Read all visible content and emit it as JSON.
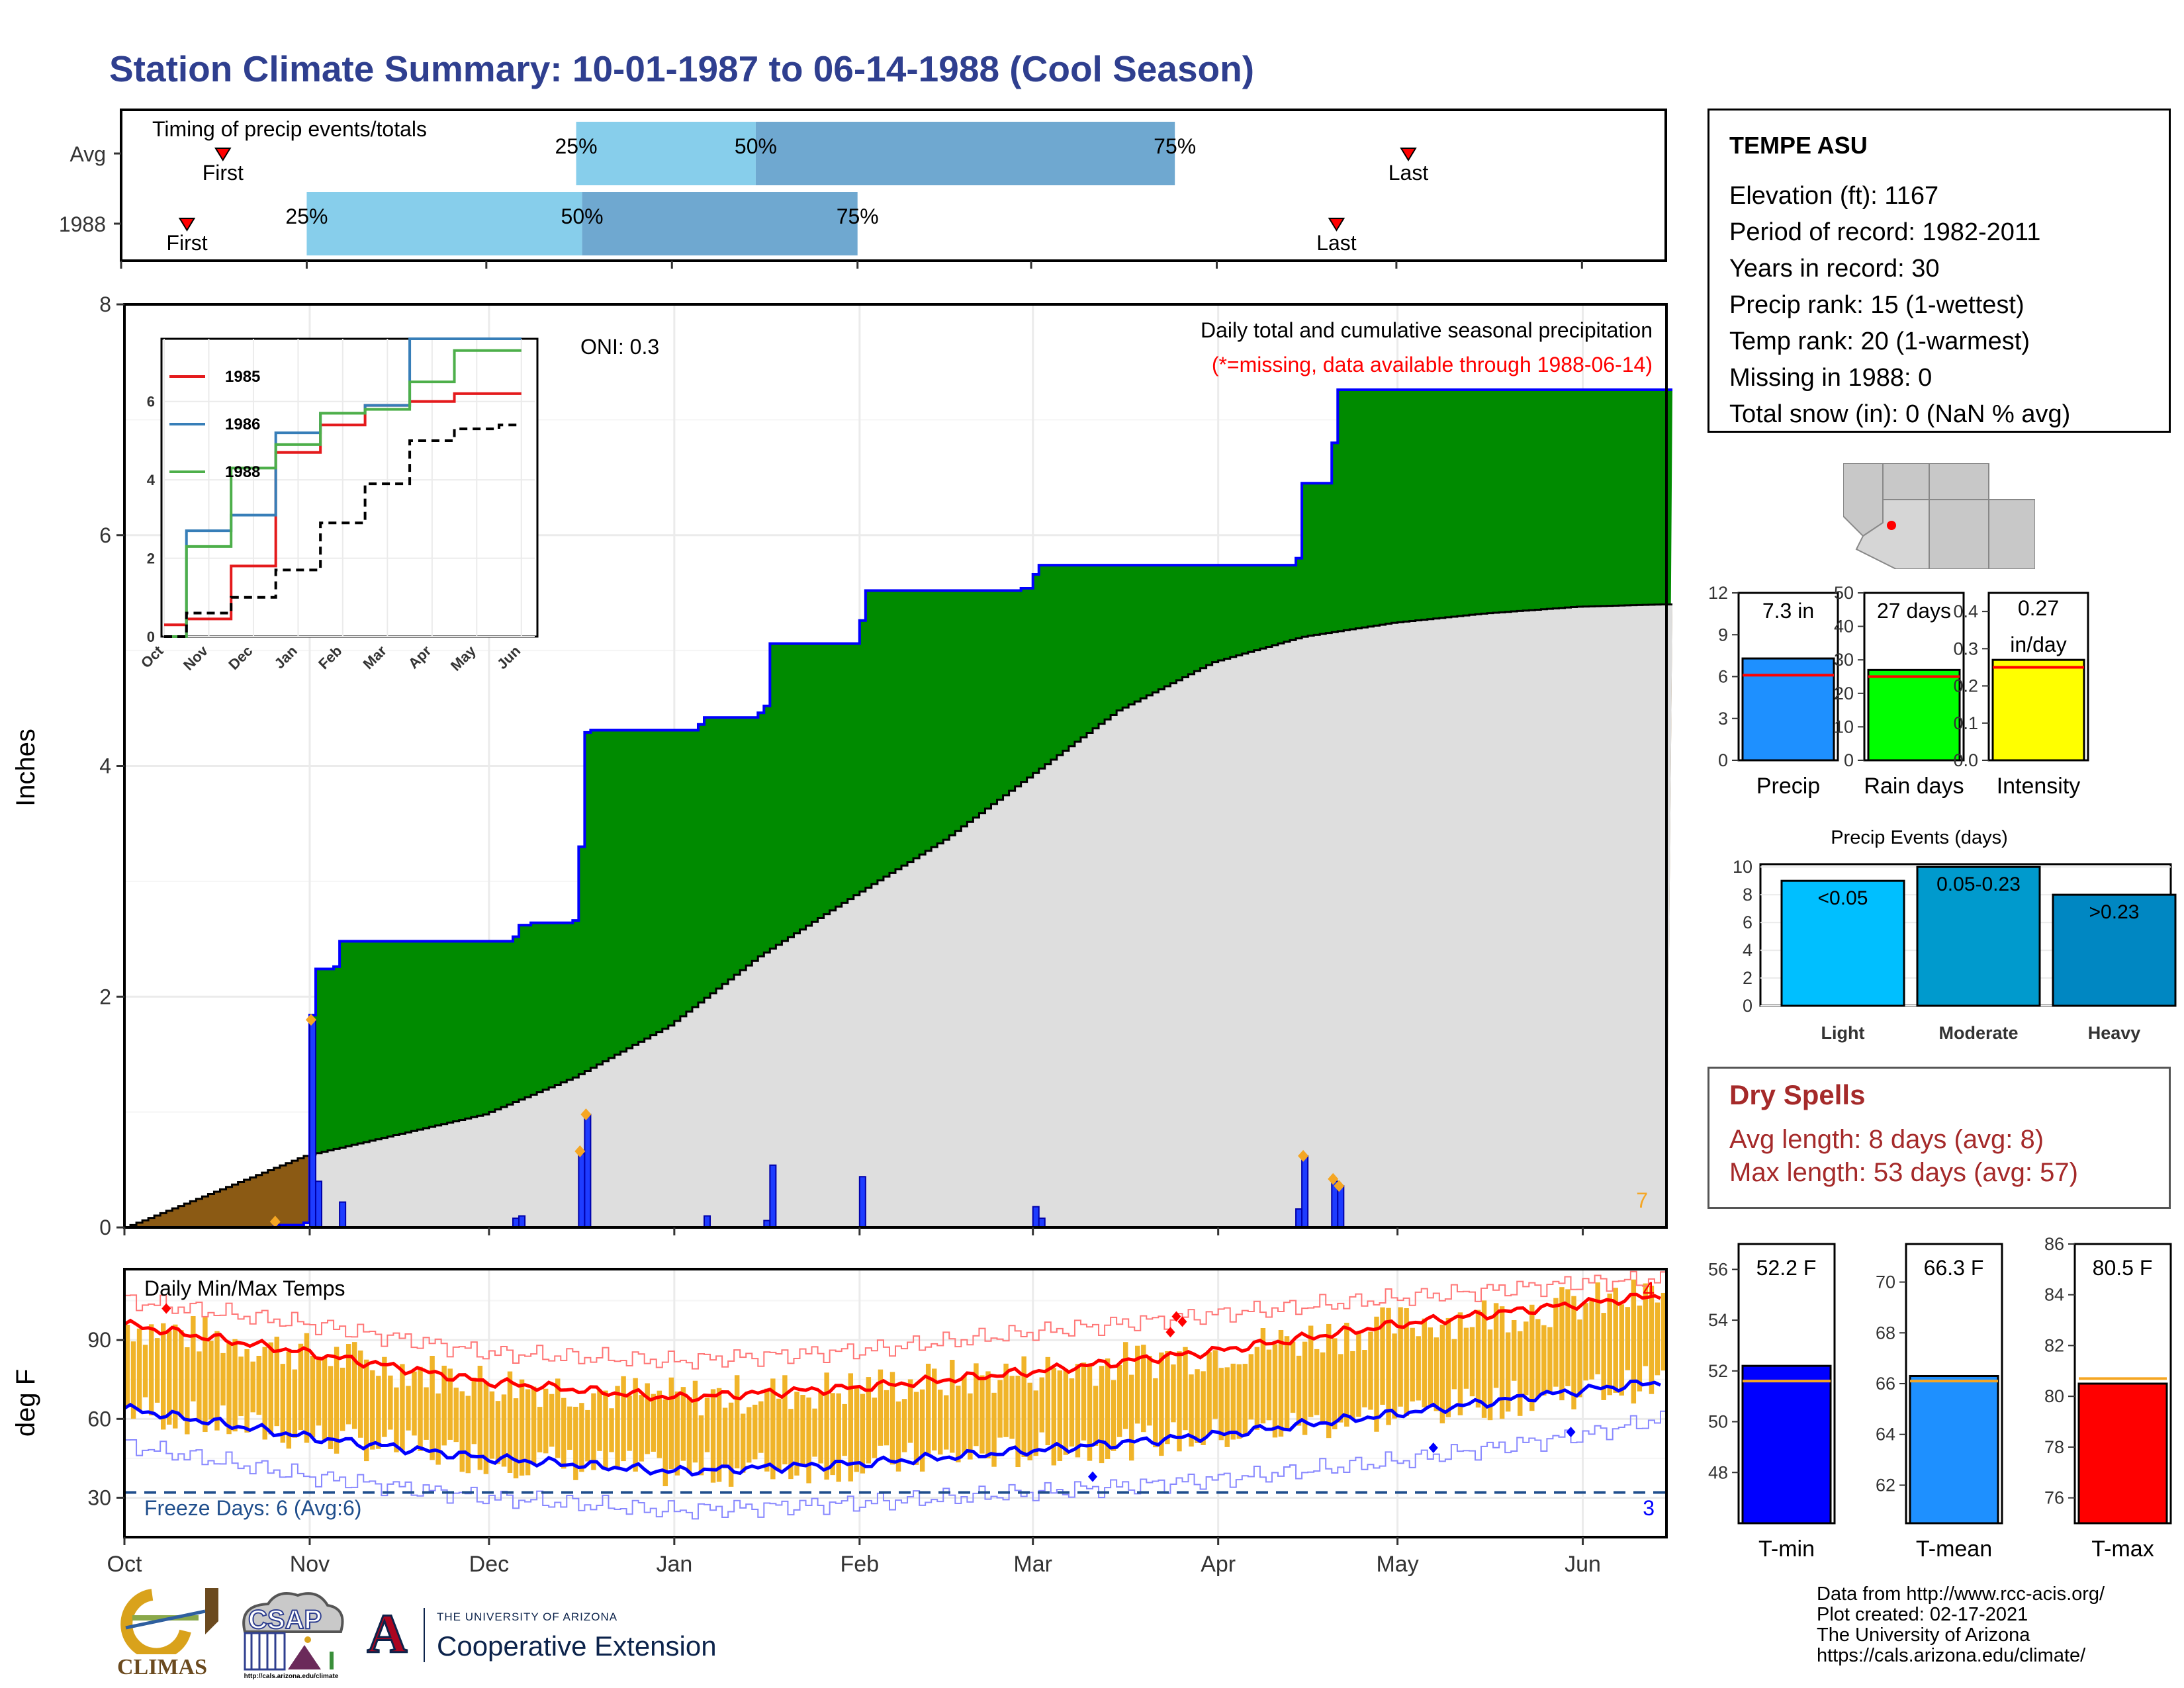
{
  "title": "Station Climate Summary: 10-01-1987 to 06-14-1988 (Cool Season)",
  "timing": {
    "label": "Timing of precip events/totals",
    "rows": [
      {
        "name": "Avg",
        "first": "1987-10-18",
        "q25": "1987-12-16",
        "q50": "1988-01-15",
        "q75": "1988-03-25",
        "last": "1988-05-03"
      },
      {
        "name": "1988",
        "first": "1987-10-12",
        "q25": "1987-11-01",
        "q50": "1987-12-17",
        "q75": "1988-02-01",
        "last": "1988-04-21"
      }
    ],
    "first_label": "First",
    "last_label": "Last",
    "pct_labels": [
      "25%",
      "50%",
      "75%"
    ]
  },
  "station": {
    "name": "TEMPE ASU",
    "lines": [
      "Elevation (ft): 1167",
      "Period of record: 1982-2011",
      "Years in record: 30",
      "Precip rank: 15 (1-wettest)",
      "Temp rank: 20 (1-warmest)",
      "Missing in 1988: 0",
      "Total snow (in): 0 (NaN % avg)"
    ]
  },
  "main_panel": {
    "ylabel": "Inches",
    "caption": "Daily total and cumulative seasonal precipitation",
    "missing_note": "(*=missing, data available through 1988-06-14)",
    "oni": "ONI: 0.3",
    "corner_value": "7",
    "yticks": [
      "0",
      "2",
      "4",
      "6",
      "8"
    ]
  },
  "inset": {
    "xticks": [
      "Oct",
      "Nov",
      "Dec",
      "Jan",
      "Feb",
      "Mar",
      "Apr",
      "May",
      "Jun"
    ],
    "yticks": [
      "0",
      "2",
      "4",
      "6"
    ],
    "legend": [
      {
        "name": "1985",
        "color": "#e41a1c"
      },
      {
        "name": "1986",
        "color": "#377eb8"
      },
      {
        "name": "1988",
        "color": "#4daf4a"
      }
    ]
  },
  "temp_panel": {
    "ylabel": "deg F",
    "title": "Daily Min/Max Temps",
    "freeze_text": "Freeze Days: 6 (Avg:6)",
    "top_count": "4",
    "bottom_count": "3",
    "yticks": [
      "30",
      "60",
      "90"
    ],
    "xticks": [
      "Oct",
      "Nov",
      "Dec",
      "Jan",
      "Feb",
      "Mar",
      "Apr",
      "May",
      "Jun"
    ]
  },
  "bars_top": [
    {
      "label": "Precip",
      "value_text": "7.3 in",
      "yticks": [
        "0",
        "3",
        "6",
        "9",
        "12"
      ],
      "color": "#1e90ff"
    },
    {
      "label": "Rain days",
      "value_text": "27 days",
      "yticks": [
        "0",
        "10",
        "20",
        "30",
        "40",
        "50"
      ],
      "color": "#00ff00"
    },
    {
      "label": "Intensity",
      "value_text": "0.27 in/day",
      "yticks": [
        "0.0",
        "0.1",
        "0.2",
        "0.3",
        "0.4"
      ],
      "color": "#ffff00"
    }
  ],
  "events": {
    "title": "Precip Events (days)",
    "categories": [
      "Light",
      "Moderate",
      "Heavy"
    ],
    "labels": [
      "<0.05",
      "0.05-0.23",
      ">0.23"
    ],
    "yticks": [
      "0",
      "2",
      "4",
      "6",
      "8",
      "10"
    ],
    "colors": [
      "#00bfff",
      "#009acd",
      "#0087c2"
    ]
  },
  "dry_spells": {
    "title": "Dry Spells",
    "avg_line": "Avg length: 8 days (avg: 8)",
    "max_line": "Max length: 53 days (avg: 57)"
  },
  "bars_temp": [
    {
      "label": "T-min",
      "value_text": "52.2 F",
      "yticks": [
        "48",
        "50",
        "52",
        "54",
        "56"
      ],
      "color": "#0000ff"
    },
    {
      "label": "T-mean",
      "value_text": "66.3 F",
      "yticks": [
        "62",
        "64",
        "66",
        "68",
        "70"
      ],
      "color": "#1e90ff"
    },
    {
      "label": "T-max",
      "value_text": "80.5 F",
      "yticks": [
        "76",
        "78",
        "80",
        "82",
        "84",
        "86"
      ],
      "color": "#ff0000"
    }
  ],
  "credits": [
    "Data from http://www.rcc-acis.org/",
    "Plot created: 02-17-2021",
    "The University of Arizona",
    "https://cals.arizona.edu/climate/"
  ],
  "logos": {
    "climas": "CLIMAS",
    "csap": "CSAP",
    "csap_url": "http://cals.arizona.edu/climate",
    "ua_line1": "THE UNIVERSITY OF ARIZONA",
    "ua_line2": "Cooperative Extension",
    "ua_mark": "A"
  },
  "chart_data": [
    {
      "type": "area",
      "title": "Daily total and cumulative seasonal precipitation",
      "ylabel": "Inches",
      "ylim": [
        0,
        8
      ],
      "x_range": [
        "1987-10-01",
        "1988-06-14"
      ],
      "series": [
        {
          "name": "cumulative 1988",
          "color": "#0000ff",
          "steps": [
            [
              "1987-10-01",
              0
            ],
            [
              "1987-10-26",
              0.02
            ],
            [
              "1987-10-31",
              0.04
            ],
            [
              "1987-11-01",
              1.84
            ],
            [
              "1987-11-02",
              2.24
            ],
            [
              "1987-11-05",
              2.26
            ],
            [
              "1987-11-06",
              2.48
            ],
            [
              "1987-12-05",
              2.52
            ],
            [
              "1987-12-06",
              2.62
            ],
            [
              "1987-12-08",
              2.64
            ],
            [
              "1987-12-15",
              2.66
            ],
            [
              "1987-12-16",
              3.3
            ],
            [
              "1987-12-17",
              4.29
            ],
            [
              "1987-12-18",
              4.31
            ],
            [
              "1988-01-05",
              4.36
            ],
            [
              "1988-01-06",
              4.42
            ],
            [
              "1988-01-15",
              4.46
            ],
            [
              "1988-01-16",
              4.52
            ],
            [
              "1988-01-17",
              5.06
            ],
            [
              "1988-02-01",
              5.26
            ],
            [
              "1988-02-02",
              5.52
            ],
            [
              "1988-02-28",
              5.54
            ],
            [
              "1988-03-01",
              5.66
            ],
            [
              "1988-03-02",
              5.74
            ],
            [
              "1988-04-14",
              5.8
            ],
            [
              "1988-04-15",
              6.45
            ],
            [
              "1988-04-20",
              6.8
            ],
            [
              "1988-04-21",
              7.26
            ],
            [
              "1988-06-14",
              7.26
            ]
          ]
        },
        {
          "name": "cumulative average",
          "color": "#000000",
          "points": [
            [
              "1987-10-01",
              0
            ],
            [
              "1987-10-31",
              0.62
            ],
            [
              "1987-11-15",
              0.8
            ],
            [
              "1987-11-30",
              0.98
            ],
            [
              "1987-12-15",
              1.3
            ],
            [
              "1987-12-31",
              1.75
            ],
            [
              "1988-01-15",
              2.35
            ],
            [
              "1988-01-31",
              2.88
            ],
            [
              "1988-02-15",
              3.36
            ],
            [
              "1988-02-29",
              3.9
            ],
            [
              "1988-03-15",
              4.48
            ],
            [
              "1988-03-31",
              4.9
            ],
            [
              "1988-04-15",
              5.12
            ],
            [
              "1988-04-30",
              5.24
            ],
            [
              "1988-05-15",
              5.32
            ],
            [
              "1988-05-31",
              5.38
            ],
            [
              "1988-06-14",
              5.4
            ]
          ]
        }
      ],
      "daily_bars": [
        [
          "1987-10-26",
          0.02
        ],
        [
          "1987-11-01",
          1.8
        ],
        [
          "1987-11-02",
          0.4
        ],
        [
          "1987-11-06",
          0.22
        ],
        [
          "1987-12-05",
          0.08
        ],
        [
          "1987-12-06",
          0.1
        ],
        [
          "1987-12-16",
          0.64
        ],
        [
          "1987-12-17",
          0.98
        ],
        [
          "1988-01-06",
          0.1
        ],
        [
          "1988-01-16",
          0.06
        ],
        [
          "1988-01-17",
          0.54
        ],
        [
          "1988-02-01",
          0.44
        ],
        [
          "1988-03-01",
          0.18
        ],
        [
          "1988-03-02",
          0.08
        ],
        [
          "1988-04-14",
          0.16
        ],
        [
          "1988-04-15",
          0.62
        ],
        [
          "1988-04-20",
          0.4
        ],
        [
          "1988-04-21",
          0.36
        ]
      ]
    },
    {
      "type": "line",
      "title": "",
      "x": [
        "Oct",
        "Nov",
        "Dec",
        "Jan",
        "Feb",
        "Mar",
        "Apr",
        "May",
        "Jun"
      ],
      "ylim": [
        0,
        7.6
      ],
      "series": [
        {
          "name": "1985",
          "color": "#e41a1c",
          "values": [
            0.3,
            0.45,
            1.8,
            4.7,
            5.4,
            5.9,
            6.0,
            6.2,
            6.2
          ]
        },
        {
          "name": "1986",
          "color": "#377eb8",
          "values": [
            0.0,
            2.7,
            3.1,
            5.2,
            5.7,
            5.9,
            7.6,
            7.6,
            7.6
          ]
        },
        {
          "name": "1988",
          "color": "#4daf4a",
          "values": [
            0.0,
            2.3,
            4.3,
            4.9,
            5.7,
            5.8,
            6.5,
            7.3,
            7.3
          ]
        },
        {
          "name": "average",
          "color": "#000000",
          "values": [
            0.0,
            0.6,
            1.0,
            1.7,
            2.9,
            3.9,
            5.0,
            5.3,
            5.4
          ]
        }
      ]
    },
    {
      "type": "line",
      "title": "Daily Min/Max Temps",
      "ylabel": "deg F",
      "ylim": [
        15,
        117
      ],
      "x": [
        "1987-10-01",
        "1987-11-01",
        "1987-12-01",
        "1988-01-01",
        "1988-02-01",
        "1988-03-01",
        "1988-04-01",
        "1988-05-01",
        "1988-06-01",
        "1988-06-14"
      ],
      "series": [
        {
          "name": "normal max",
          "color": "#ff0000",
          "values": [
            96,
            85,
            74,
            68,
            72,
            78,
            86,
            96,
            104,
            107
          ]
        },
        {
          "name": "normal min",
          "color": "#0000ff",
          "values": [
            64,
            53,
            45,
            40,
            43,
            48,
            54,
            62,
            71,
            74
          ]
        },
        {
          "name": "record max",
          "color": "#ff7777",
          "values": [
            105,
            96,
            85,
            82,
            86,
            93,
            100,
            106,
            112,
            113
          ]
        },
        {
          "name": "record min",
          "color": "#8888ff",
          "values": [
            50,
            38,
            30,
            25,
            28,
            32,
            37,
            44,
            54,
            60
          ]
        }
      ],
      "freeze_line": 32
    },
    {
      "type": "bar",
      "categories": [
        "Precip"
      ],
      "values": [
        7.3
      ],
      "average": 6.1,
      "ylim": [
        0,
        12
      ]
    },
    {
      "type": "bar",
      "categories": [
        "Rain days"
      ],
      "values": [
        27
      ],
      "average": 25,
      "ylim": [
        0,
        50
      ]
    },
    {
      "type": "bar",
      "categories": [
        "Intensity"
      ],
      "values": [
        0.27
      ],
      "average": 0.25,
      "ylim": [
        0,
        0.45
      ]
    },
    {
      "type": "bar",
      "title": "Precip Events (days)",
      "categories": [
        "Light",
        "Moderate",
        "Heavy"
      ],
      "values": [
        9,
        10,
        8
      ],
      "ylim": [
        0,
        10.2
      ]
    },
    {
      "type": "bar",
      "categories": [
        "T-min"
      ],
      "values": [
        52.2
      ],
      "average": 51.6,
      "ylim": [
        46,
        57
      ]
    },
    {
      "type": "bar",
      "categories": [
        "T-mean"
      ],
      "values": [
        66.3
      ],
      "average": 66.1,
      "ylim": [
        60.5,
        71.5
      ]
    },
    {
      "type": "bar",
      "categories": [
        "T-max"
      ],
      "values": [
        80.5
      ],
      "average": 80.7,
      "ylim": [
        75,
        86
      ]
    }
  ]
}
